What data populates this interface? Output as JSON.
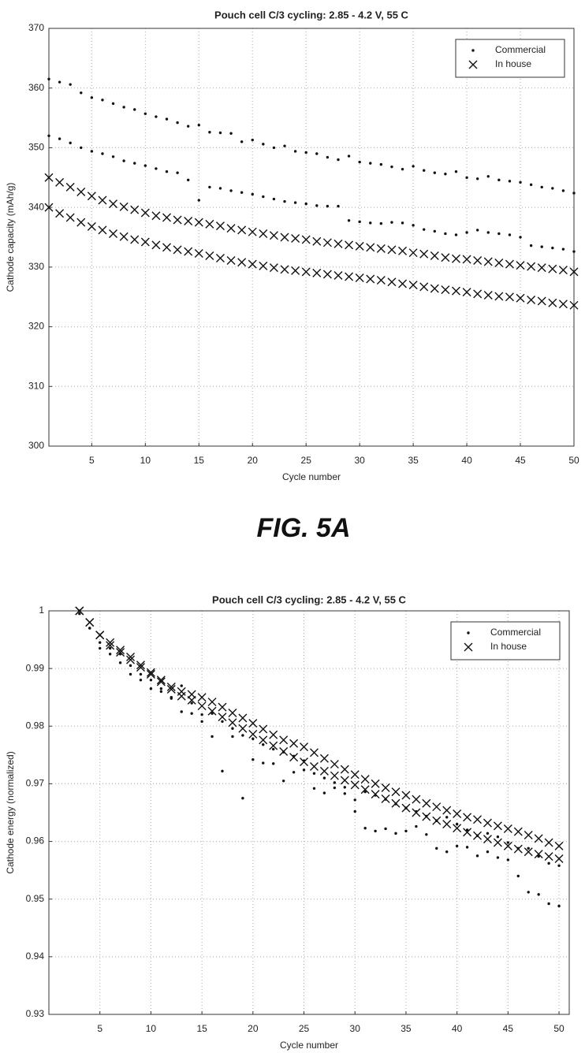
{
  "figure_label": "FIG. 5A",
  "chart_data": [
    {
      "type": "scatter",
      "title": "Pouch cell C/3 cycling: 2.85 - 4.2 V, 55 C",
      "xlabel": "Cycle number",
      "ylabel": "Cathode capacity (mAh/g)",
      "xlim": [
        1,
        50
      ],
      "xticks": [
        5,
        10,
        15,
        20,
        25,
        30,
        35,
        40,
        45,
        50
      ],
      "ylim": [
        300,
        370
      ],
      "yticks": [
        300,
        310,
        320,
        330,
        340,
        350,
        360,
        370
      ],
      "grid": true,
      "legend": "upper right",
      "x": [
        1,
        2,
        3,
        4,
        5,
        6,
        7,
        8,
        9,
        10,
        11,
        12,
        13,
        14,
        15,
        16,
        17,
        18,
        19,
        20,
        21,
        22,
        23,
        24,
        25,
        26,
        27,
        28,
        29,
        30,
        31,
        32,
        33,
        34,
        35,
        36,
        37,
        38,
        39,
        40,
        41,
        42,
        43,
        44,
        45,
        46,
        47,
        48,
        49,
        50
      ],
      "series": [
        {
          "name": "Commercial",
          "marker": "dot",
          "color": "#111111",
          "values": [
            361.5,
            361,
            360.6,
            359.2,
            358.4,
            358,
            357.4,
            356.8,
            356.4,
            355.7,
            355.2,
            354.8,
            354.2,
            353.6,
            353.8,
            352.6,
            352.5,
            352.4,
            351,
            351.3,
            350.6,
            350,
            350.3,
            349.4,
            349.2,
            349,
            348.4,
            348,
            348.6,
            347.6,
            347.4,
            347.2,
            346.8,
            346.4,
            346.9,
            346.2,
            345.8,
            345.6,
            346,
            345,
            344.8,
            345.2,
            344.6,
            344.4,
            344.2,
            343.8,
            343.4,
            343.2,
            342.8,
            342.4
          ]
        },
        {
          "marker": "dot",
          "color": "#111111",
          "values": [
            352,
            351.5,
            350.8,
            350,
            349.4,
            349,
            348.5,
            347.8,
            347.4,
            347,
            346.5,
            346,
            345.8,
            344.6,
            341.2,
            343.4,
            343.2,
            342.8,
            342.5,
            342.2,
            341.8,
            341.4,
            341,
            340.8,
            340.6,
            340.3,
            340.2,
            340.2,
            337.8,
            337.6,
            337.4,
            337.3,
            337.5,
            337.4,
            337,
            336.3,
            336,
            335.6,
            335.4,
            335.8,
            336.2,
            335.8,
            335.6,
            335.4,
            335,
            333.6,
            333.4,
            333.2,
            333,
            332.6
          ]
        },
        {
          "name": "In house",
          "marker": "x",
          "color": "#111111",
          "values": [
            345,
            344.2,
            343.4,
            342.6,
            341.9,
            341.2,
            340.6,
            340.1,
            339.6,
            339.1,
            338.6,
            338.3,
            337.9,
            337.7,
            337.5,
            337.2,
            336.9,
            336.5,
            336.2,
            335.9,
            335.6,
            335.3,
            335,
            334.8,
            334.6,
            334.3,
            334.1,
            333.9,
            333.7,
            333.5,
            333.3,
            333.1,
            332.9,
            332.7,
            332.4,
            332.2,
            331.9,
            331.6,
            331.4,
            331.3,
            331.1,
            330.9,
            330.7,
            330.5,
            330.3,
            330.1,
            329.9,
            329.7,
            329.5,
            329.2
          ]
        },
        {
          "marker": "x",
          "color": "#111111",
          "values": [
            340,
            339,
            338.3,
            337.5,
            336.8,
            336.2,
            335.6,
            335.1,
            334.6,
            334.2,
            333.7,
            333.3,
            332.9,
            332.6,
            332.3,
            331.9,
            331.5,
            331.1,
            330.8,
            330.5,
            330.2,
            329.9,
            329.6,
            329.4,
            329.2,
            329,
            328.8,
            328.6,
            328.4,
            328.2,
            328,
            327.8,
            327.5,
            327.2,
            327,
            326.7,
            326.4,
            326.2,
            326,
            325.8,
            325.5,
            325.3,
            325.1,
            325,
            324.8,
            324.5,
            324.3,
            324,
            323.8,
            323.6
          ]
        }
      ]
    },
    {
      "type": "scatter",
      "title": "Pouch cell C/3 cycling: 2.85 - 4.2 V, 55 C",
      "xlabel": "Cycle number",
      "ylabel": "Cathode energy (normalized)",
      "xlim": [
        0,
        51
      ],
      "xticks": [
        5,
        10,
        15,
        20,
        25,
        30,
        35,
        40,
        45,
        50
      ],
      "ylim": [
        0.93,
        1
      ],
      "yticks": [
        0.93,
        0.94,
        0.95,
        0.96,
        0.97,
        0.98,
        0.99,
        1
      ],
      "grid": true,
      "legend": "upper right",
      "x": [
        3,
        4,
        5,
        6,
        7,
        8,
        9,
        10,
        11,
        12,
        13,
        14,
        15,
        16,
        17,
        18,
        19,
        20,
        21,
        22,
        23,
        24,
        25,
        26,
        27,
        28,
        29,
        30,
        31,
        32,
        33,
        34,
        35,
        36,
        37,
        38,
        39,
        40,
        41,
        42,
        43,
        44,
        45,
        46,
        47,
        48,
        49,
        50
      ],
      "series": [
        {
          "name": "Commercial",
          "marker": "dot",
          "color": "#111111",
          "values": [
            1.0,
            0.997,
            0.9945,
            0.9935,
            0.9925,
            0.9905,
            0.989,
            0.988,
            0.9865,
            0.985,
            0.987,
            0.984,
            0.982,
            0.9822,
            0.9808,
            0.9796,
            0.9784,
            0.9778,
            0.9768,
            0.976,
            0.9755,
            0.9748,
            0.974,
            0.9718,
            0.971,
            0.9702,
            0.9694,
            0.9672,
            0.9686,
            0.968,
            0.9673,
            0.9665,
            0.9658,
            0.9652,
            0.9644,
            0.9636,
            0.9642,
            0.963,
            0.962,
            0.961,
            0.9614,
            0.9608,
            0.9598,
            0.9588,
            0.9588,
            0.9574,
            0.9562,
            0.9558
          ]
        },
        {
          "marker": "dot",
          "color": "#111111",
          "values": [
            0.9995,
            0.997,
            0.9935,
            0.9925,
            0.991,
            0.989,
            0.988,
            0.9865,
            0.986,
            0.9848,
            0.9825,
            0.9822,
            0.9808,
            0.9782,
            0.9722,
            0.9782,
            0.9675,
            0.9742,
            0.9736,
            0.9735,
            0.9705,
            0.972,
            0.9724,
            0.9692,
            0.9684,
            0.9693,
            0.9683,
            0.9652,
            0.9623,
            0.9618,
            0.9622,
            0.9614,
            0.9618,
            0.9626,
            0.9612,
            0.9588,
            0.9582,
            0.9592,
            0.959,
            0.9575,
            0.9582,
            0.9572,
            0.9568,
            0.954,
            0.9512,
            0.9508,
            0.9492,
            0.9488
          ]
        },
        {
          "name": "In house",
          "marker": "x",
          "color": "#111111",
          "values": [
            1.0,
            0.998,
            0.9958,
            0.9945,
            0.9932,
            0.992,
            0.9906,
            0.9893,
            0.988,
            0.9868,
            0.986,
            0.9855,
            0.985,
            0.9842,
            0.9833,
            0.9823,
            0.9814,
            0.9805,
            0.9795,
            0.9785,
            0.9776,
            0.977,
            0.9764,
            0.9754,
            0.9744,
            0.9734,
            0.9725,
            0.9716,
            0.9708,
            0.97,
            0.9693,
            0.9686,
            0.968,
            0.9673,
            0.9666,
            0.966,
            0.9654,
            0.9648,
            0.9642,
            0.9638,
            0.9632,
            0.9627,
            0.9622,
            0.9617,
            0.9611,
            0.9605,
            0.9598,
            0.9592
          ]
        },
        {
          "marker": "x",
          "color": "#111111",
          "values": [
            1.0,
            0.998,
            0.9958,
            0.994,
            0.9928,
            0.9915,
            0.9902,
            0.989,
            0.9877,
            0.9864,
            0.9852,
            0.9845,
            0.9835,
            0.9826,
            0.9816,
            0.9806,
            0.9796,
            0.9786,
            0.9776,
            0.9766,
            0.9756,
            0.9746,
            0.9738,
            0.973,
            0.9722,
            0.9714,
            0.9706,
            0.9698,
            0.969,
            0.9682,
            0.9674,
            0.9666,
            0.9658,
            0.965,
            0.9643,
            0.9636,
            0.963,
            0.9623,
            0.9616,
            0.961,
            0.9604,
            0.9598,
            0.9592,
            0.9587,
            0.9582,
            0.9578,
            0.9574,
            0.957
          ]
        }
      ]
    }
  ]
}
